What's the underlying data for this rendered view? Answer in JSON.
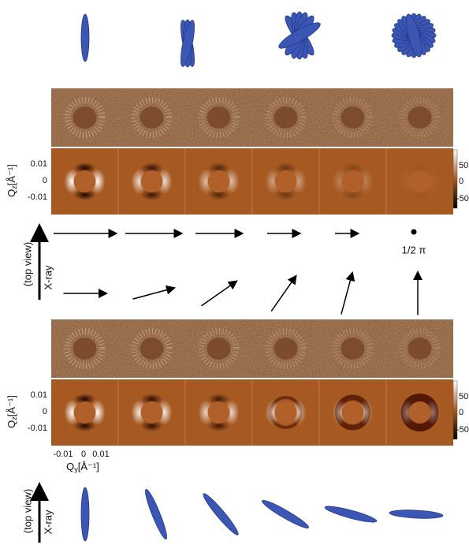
{
  "upper": {
    "axis_symbol": "Q",
    "axis_sub": "z",
    "axis_unit": "[Å⁻¹]",
    "axis_ticks": [
      "0.01",
      "0",
      "-0.01"
    ],
    "colorbar_ticks": [
      "50",
      "0",
      "-50"
    ]
  },
  "arrows": {
    "end_label": "1/2 π"
  },
  "inset": {
    "top_view": "(top view)",
    "xray": "X-ray"
  },
  "lower": {
    "axis_symbol": "Q",
    "axis_sub": "z",
    "axis_unit": "[Å⁻¹]",
    "axis_ticks": [
      "0.01",
      "0",
      "-0.01"
    ],
    "colorbar_ticks": [
      "50",
      "0",
      "-50"
    ]
  },
  "horizontal_axis": {
    "symbol": "Q",
    "sub": "y",
    "unit": "[Å⁻¹]",
    "ticks": [
      "-0.01",
      "0",
      "0.01"
    ]
  }
}
